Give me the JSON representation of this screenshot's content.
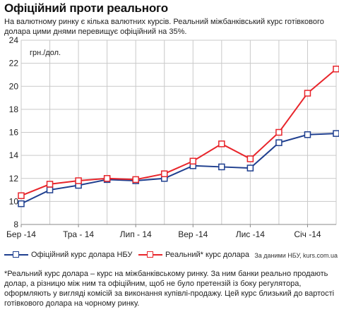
{
  "header": {
    "title": "Офіційний проти реального",
    "subtitle": "На валютному ринку є кілька валютних курсів. Реальний міжбанківський курс готівкового долара цими днями перевищує офіційний на 35%."
  },
  "chart_data": {
    "type": "line",
    "unit_label": "грн./дол.",
    "x_tick_labels": [
      "Бер -14",
      "Тра - 14",
      "Лип - 14",
      "Вер -14",
      "Лис -14",
      "Січ -14"
    ],
    "y_ticks": [
      8,
      10,
      12,
      14,
      16,
      18,
      20,
      22,
      24
    ],
    "ylim": [
      8,
      24
    ],
    "grid": true,
    "series": [
      {
        "name": "Офіційний курс долара НБУ",
        "color": "#1f3f8f",
        "values": [
          9.8,
          11.0,
          11.4,
          11.9,
          11.8,
          12.0,
          13.1,
          13.0,
          12.9,
          15.1,
          15.8,
          15.9
        ]
      },
      {
        "name": "Реальний* курс долара",
        "color": "#e8252b",
        "values": [
          10.5,
          11.5,
          11.8,
          12.0,
          11.9,
          12.4,
          13.5,
          15.0,
          13.7,
          16.0,
          19.4,
          21.5
        ]
      }
    ]
  },
  "legend": {
    "official": "Офіційний курс долара НБУ",
    "real": "Реальний* курс долара",
    "source": "За даними НБУ, kurs.com.ua"
  },
  "footnote": "*Реальний курс долара – курс на міжбанківському ринку. За ним банки реально продають долар, а різницю між ним та офіційним, щоб не було претензій із боку регулятора, оформляють у вигляді комісій за виконання купівлі-продажу. Цей курс близький до вартості готівкового долара на чорному ринку."
}
